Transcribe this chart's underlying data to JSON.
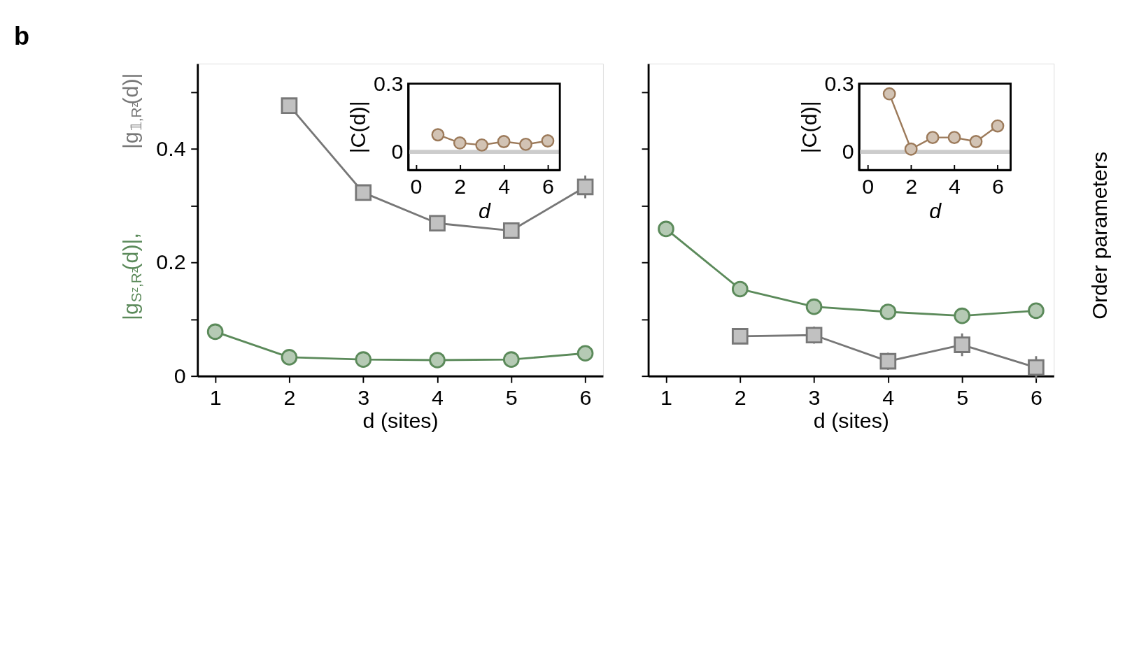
{
  "chart_data": [
    {
      "type": "line",
      "annotations": [
        "b"
      ],
      "xlabel": "d (sites)",
      "x": [
        1,
        2,
        3,
        4,
        5,
        6
      ],
      "xlim": [
        0.76,
        6.24
      ],
      "xticks": [
        1,
        2,
        3,
        4,
        5,
        6
      ],
      "ylim": [
        0,
        0.55
      ],
      "yticks": [
        0,
        {
          "value": 0.1,
          "label": null
        },
        0.2,
        {
          "value": 0.3,
          "label": null
        },
        0.4,
        {
          "value": 0.5,
          "label": null
        }
      ],
      "grid": false,
      "series": [
        {
          "name": "|g$_{Sᶻ,Rᶻ}$(d)|,",
          "color": "#5b8a5a",
          "marker": "circle",
          "values": [
            0.078,
            0.033,
            0.029,
            0.028,
            0.029,
            0.04
          ]
        },
        {
          "name": "|g$_{𝟙,Rᶻ}$(d)|",
          "color": "#777777",
          "marker": "square",
          "values": [
            null,
            0.476,
            0.323,
            0.269,
            0.256,
            0.333
          ],
          "errors": [
            null,
            null,
            null,
            0.01,
            0.01,
            0.02
          ]
        }
      ]
    },
    {
      "type": "line",
      "xlabel": "d",
      "ylabel": "|C(d)|",
      "x": [
        1,
        2,
        3,
        4,
        5,
        6
      ],
      "xlim": [
        -0.35,
        6.55
      ],
      "xticks": [
        0,
        2,
        4,
        6
      ],
      "ylim": [
        -0.08,
        0.3
      ],
      "yticks": [
        0,
        0.3
      ],
      "grid": false,
      "marker": "circle",
      "ref_lines": [
        {
          "axis": "y",
          "value": 0,
          "color": "#cccccc"
        }
      ],
      "series": [
        {
          "color": "#9c7a5a",
          "values": [
            0.075,
            0.039,
            0.03,
            0.045,
            0.033,
            0.048
          ]
        }
      ]
    },
    {
      "type": "line",
      "xlabel": "d (sites)",
      "ylabel": "Order parameters",
      "x": [
        1,
        2,
        3,
        4,
        5,
        6
      ],
      "xlim": [
        0.76,
        6.24
      ],
      "xticks": [
        1,
        2,
        3,
        4,
        5,
        6
      ],
      "ylim": [
        0,
        0.55
      ],
      "yticks": [
        0,
        {
          "value": 0.1,
          "label": null
        },
        0.2,
        {
          "value": 0.3,
          "label": null
        },
        0.4,
        {
          "value": 0.5,
          "label": null
        }
      ],
      "tick_labels": "x",
      "grid": false,
      "series": [
        {
          "color": "#5b8a5a",
          "marker": "circle",
          "values": [
            0.259,
            0.153,
            0.122,
            0.113,
            0.106,
            0.115
          ]
        },
        {
          "color": "#777777",
          "marker": "square",
          "values": [
            null,
            0.07,
            0.072,
            0.026,
            0.055,
            0.015
          ],
          "errors": [
            null,
            0.01,
            0.015,
            0.015,
            0.02,
            0.02
          ]
        }
      ]
    },
    {
      "type": "line",
      "xlabel": "d",
      "ylabel": "|C(d)|",
      "x": [
        1,
        2,
        3,
        4,
        5,
        6
      ],
      "xlim": [
        -0.4,
        6.6
      ],
      "xticks": [
        0,
        2,
        4,
        6
      ],
      "ylim": [
        -0.08,
        0.3
      ],
      "yticks": [
        0,
        0.3
      ],
      "grid": false,
      "marker": "circle",
      "ref_lines": [
        {
          "axis": "y",
          "value": 0,
          "color": "#cccccc"
        }
      ],
      "series": [
        {
          "color": "#9c7a5a",
          "values": [
            0.255,
            0.012,
            0.063,
            0.063,
            0.045,
            0.114
          ]
        }
      ]
    }
  ]
}
